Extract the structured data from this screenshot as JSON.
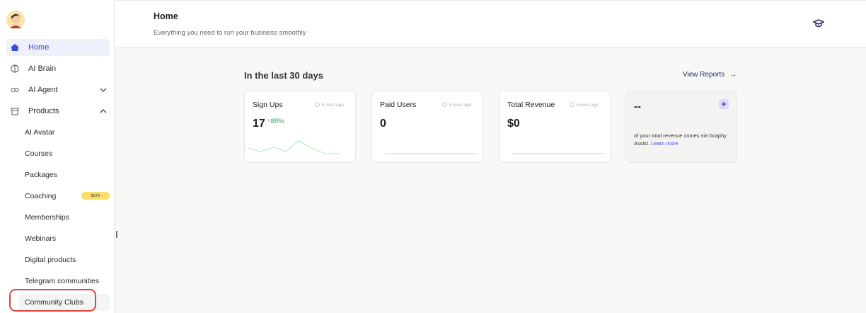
{
  "sidebar": {
    "nav": [
      {
        "label": "Home"
      },
      {
        "label": "AI Brain"
      },
      {
        "label": "AI Agent"
      },
      {
        "label": "Products"
      }
    ],
    "products": [
      {
        "label": "AI Avatar"
      },
      {
        "label": "Courses"
      },
      {
        "label": "Packages"
      },
      {
        "label": "Coaching",
        "badge": "BETA"
      },
      {
        "label": "Memberships"
      },
      {
        "label": "Webinars"
      },
      {
        "label": "Digital products"
      },
      {
        "label": "Telegram communities"
      },
      {
        "label": "Community Clubs"
      }
    ]
  },
  "header": {
    "title": "Home",
    "subtitle": "Everything you need to run your business smoothly"
  },
  "section": {
    "title": "In the last 30 days",
    "link": "View Reports"
  },
  "cards": [
    {
      "title": "Sign Ups",
      "time": "5 secs ago",
      "value": "17",
      "change": "88%"
    },
    {
      "title": "Paid Users",
      "time": "5 secs ago",
      "value": "0"
    },
    {
      "title": "Total Revenue",
      "time": "5 secs ago",
      "value": "$0"
    }
  ],
  "assist": {
    "value": "--",
    "text": "of your total revenue comes via Graphy Assist. Learn more",
    "link": "Learn more"
  }
}
